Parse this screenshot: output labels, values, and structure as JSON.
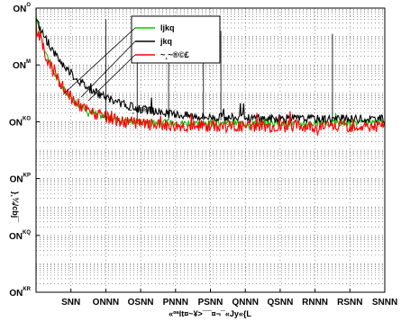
{
  "chart_data": {
    "type": "line",
    "title": "",
    "xlabel": "«ºªlt¤~¥>¯¯¤¬¯«Jy«{L",
    "ylabel": "}¸¾/cbj¯",
    "xlim": [
      0,
      10000
    ],
    "ylog": true,
    "ylim_decades": [
      -8,
      0
    ],
    "x_ticks": [
      {
        "value": 1000,
        "label": "SNN"
      },
      {
        "value": 2000,
        "label": "ONNN"
      },
      {
        "value": 3000,
        "label": "OSNN"
      },
      {
        "value": 4000,
        "label": "PNNN"
      },
      {
        "value": 5000,
        "label": "PSNN"
      },
      {
        "value": 6000,
        "label": "QNNN"
      },
      {
        "value": 7000,
        "label": "QSNN"
      },
      {
        "value": 8000,
        "label": "RNNN"
      },
      {
        "value": 9000,
        "label": "RSNN"
      },
      {
        "value": 10000,
        "label": "SNNN"
      }
    ],
    "y_ticks": [
      {
        "exp": 0,
        "base": "ON",
        "sup": "O"
      },
      {
        "exp": -2,
        "base": "ON",
        "sup": "M"
      },
      {
        "exp": -4,
        "base": "ON",
        "sup": "KO"
      },
      {
        "exp": -6,
        "base": "ON",
        "sup": "KP"
      },
      {
        "exp": -8,
        "base": "ON",
        "sup": "KQ"
      },
      {
        "exp": -10,
        "base": "ON",
        "sup": "KR"
      }
    ],
    "grid": true,
    "legend_position": "top-right",
    "series": [
      {
        "name": "ljkq",
        "color": "#00cc00",
        "y_start_exp": -0.3,
        "decay_scale": 700,
        "floor_exp": -4.05,
        "noise": 0.12
      },
      {
        "name": "jkq",
        "color": "#000000",
        "y_start_exp": -0.4,
        "decay_scale": 1300,
        "floor_exp": -3.9,
        "noise": 0.15
      },
      {
        "name": "~¸~®©£",
        "color": "#ff0000",
        "y_start_exp": -0.6,
        "decay_scale": 800,
        "floor_exp": -4.15,
        "noise": 0.22
      }
    ],
    "annotation": "~¸~®©£",
    "background_color": "#ffffff"
  }
}
